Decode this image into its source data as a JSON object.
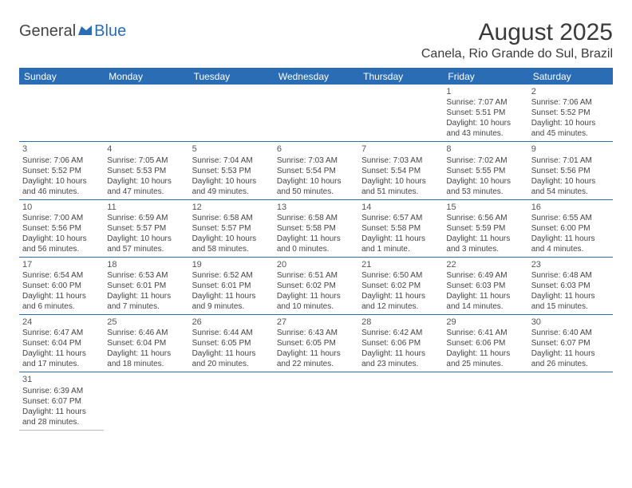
{
  "logo": {
    "text1": "General",
    "text2": "Blue"
  },
  "title": "August 2025",
  "location": "Canela, Rio Grande do Sul, Brazil",
  "colors": {
    "header_bg": "#2b6db5",
    "header_text": "#ffffff",
    "border": "#2b6db5",
    "text": "#444444",
    "title_text": "#3a3a3a"
  },
  "weekdays": [
    "Sunday",
    "Monday",
    "Tuesday",
    "Wednesday",
    "Thursday",
    "Friday",
    "Saturday"
  ],
  "first_weekday_index": 5,
  "num_days": 31,
  "days": [
    {
      "n": 1,
      "sunrise": "7:07 AM",
      "sunset": "5:51 PM",
      "daylight": "10 hours and 43 minutes."
    },
    {
      "n": 2,
      "sunrise": "7:06 AM",
      "sunset": "5:52 PM",
      "daylight": "10 hours and 45 minutes."
    },
    {
      "n": 3,
      "sunrise": "7:06 AM",
      "sunset": "5:52 PM",
      "daylight": "10 hours and 46 minutes."
    },
    {
      "n": 4,
      "sunrise": "7:05 AM",
      "sunset": "5:53 PM",
      "daylight": "10 hours and 47 minutes."
    },
    {
      "n": 5,
      "sunrise": "7:04 AM",
      "sunset": "5:53 PM",
      "daylight": "10 hours and 49 minutes."
    },
    {
      "n": 6,
      "sunrise": "7:03 AM",
      "sunset": "5:54 PM",
      "daylight": "10 hours and 50 minutes."
    },
    {
      "n": 7,
      "sunrise": "7:03 AM",
      "sunset": "5:54 PM",
      "daylight": "10 hours and 51 minutes."
    },
    {
      "n": 8,
      "sunrise": "7:02 AM",
      "sunset": "5:55 PM",
      "daylight": "10 hours and 53 minutes."
    },
    {
      "n": 9,
      "sunrise": "7:01 AM",
      "sunset": "5:56 PM",
      "daylight": "10 hours and 54 minutes."
    },
    {
      "n": 10,
      "sunrise": "7:00 AM",
      "sunset": "5:56 PM",
      "daylight": "10 hours and 56 minutes."
    },
    {
      "n": 11,
      "sunrise": "6:59 AM",
      "sunset": "5:57 PM",
      "daylight": "10 hours and 57 minutes."
    },
    {
      "n": 12,
      "sunrise": "6:58 AM",
      "sunset": "5:57 PM",
      "daylight": "10 hours and 58 minutes."
    },
    {
      "n": 13,
      "sunrise": "6:58 AM",
      "sunset": "5:58 PM",
      "daylight": "11 hours and 0 minutes."
    },
    {
      "n": 14,
      "sunrise": "6:57 AM",
      "sunset": "5:58 PM",
      "daylight": "11 hours and 1 minute."
    },
    {
      "n": 15,
      "sunrise": "6:56 AM",
      "sunset": "5:59 PM",
      "daylight": "11 hours and 3 minutes."
    },
    {
      "n": 16,
      "sunrise": "6:55 AM",
      "sunset": "6:00 PM",
      "daylight": "11 hours and 4 minutes."
    },
    {
      "n": 17,
      "sunrise": "6:54 AM",
      "sunset": "6:00 PM",
      "daylight": "11 hours and 6 minutes."
    },
    {
      "n": 18,
      "sunrise": "6:53 AM",
      "sunset": "6:01 PM",
      "daylight": "11 hours and 7 minutes."
    },
    {
      "n": 19,
      "sunrise": "6:52 AM",
      "sunset": "6:01 PM",
      "daylight": "11 hours and 9 minutes."
    },
    {
      "n": 20,
      "sunrise": "6:51 AM",
      "sunset": "6:02 PM",
      "daylight": "11 hours and 10 minutes."
    },
    {
      "n": 21,
      "sunrise": "6:50 AM",
      "sunset": "6:02 PM",
      "daylight": "11 hours and 12 minutes."
    },
    {
      "n": 22,
      "sunrise": "6:49 AM",
      "sunset": "6:03 PM",
      "daylight": "11 hours and 14 minutes."
    },
    {
      "n": 23,
      "sunrise": "6:48 AM",
      "sunset": "6:03 PM",
      "daylight": "11 hours and 15 minutes."
    },
    {
      "n": 24,
      "sunrise": "6:47 AM",
      "sunset": "6:04 PM",
      "daylight": "11 hours and 17 minutes."
    },
    {
      "n": 25,
      "sunrise": "6:46 AM",
      "sunset": "6:04 PM",
      "daylight": "11 hours and 18 minutes."
    },
    {
      "n": 26,
      "sunrise": "6:44 AM",
      "sunset": "6:05 PM",
      "daylight": "11 hours and 20 minutes."
    },
    {
      "n": 27,
      "sunrise": "6:43 AM",
      "sunset": "6:05 PM",
      "daylight": "11 hours and 22 minutes."
    },
    {
      "n": 28,
      "sunrise": "6:42 AM",
      "sunset": "6:06 PM",
      "daylight": "11 hours and 23 minutes."
    },
    {
      "n": 29,
      "sunrise": "6:41 AM",
      "sunset": "6:06 PM",
      "daylight": "11 hours and 25 minutes."
    },
    {
      "n": 30,
      "sunrise": "6:40 AM",
      "sunset": "6:07 PM",
      "daylight": "11 hours and 26 minutes."
    },
    {
      "n": 31,
      "sunrise": "6:39 AM",
      "sunset": "6:07 PM",
      "daylight": "11 hours and 28 minutes."
    }
  ],
  "labels": {
    "sunrise": "Sunrise:",
    "sunset": "Sunset:",
    "daylight": "Daylight:"
  }
}
